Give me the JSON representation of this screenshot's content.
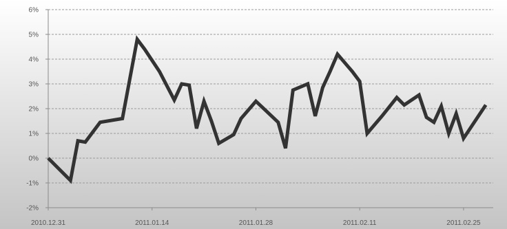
{
  "chart_data": {
    "type": "line",
    "title": "",
    "xlabel": "",
    "ylabel": "",
    "ylim": [
      -2,
      6
    ],
    "y_ticks": [
      -2,
      -1,
      0,
      1,
      2,
      3,
      4,
      5,
      6
    ],
    "y_tick_labels": [
      "-2%",
      "-1%",
      "0%",
      "1%",
      "2%",
      "3%",
      "4%",
      "5%",
      "6%"
    ],
    "x_tick_labels": [
      "2010.12.31",
      "2011.01.14",
      "2011.01.28",
      "2011.02.11",
      "2011.02.25"
    ],
    "x_tick_positions": [
      0,
      14,
      28,
      42,
      56
    ],
    "grid": true,
    "background": "vertical gradient white to gray",
    "colors": {
      "line": "#333333",
      "grid": "#9a9a9a"
    },
    "series": [
      {
        "x": [
          0,
          3,
          4,
          5,
          7,
          10,
          12,
          13,
          15,
          17,
          18,
          19,
          20,
          21,
          22,
          23,
          25,
          26,
          28,
          31,
          32,
          33,
          35,
          36,
          37,
          38,
          39,
          41,
          42,
          43,
          45,
          47,
          48,
          50,
          51,
          52,
          53,
          54,
          55,
          56,
          59
        ],
        "y": [
          0,
          -0.9,
          0.7,
          0.65,
          1.45,
          1.6,
          4.8,
          4.4,
          3.5,
          2.35,
          3.0,
          2.95,
          1.2,
          2.3,
          1.5,
          0.6,
          0.95,
          1.6,
          2.3,
          1.45,
          0.4,
          2.75,
          3.0,
          1.7,
          2.85,
          3.5,
          4.2,
          3.5,
          3.1,
          1.0,
          1.7,
          2.45,
          2.15,
          2.55,
          1.65,
          1.45,
          2.1,
          1.0,
          1.8,
          0.8,
          2.15
        ]
      }
    ]
  }
}
